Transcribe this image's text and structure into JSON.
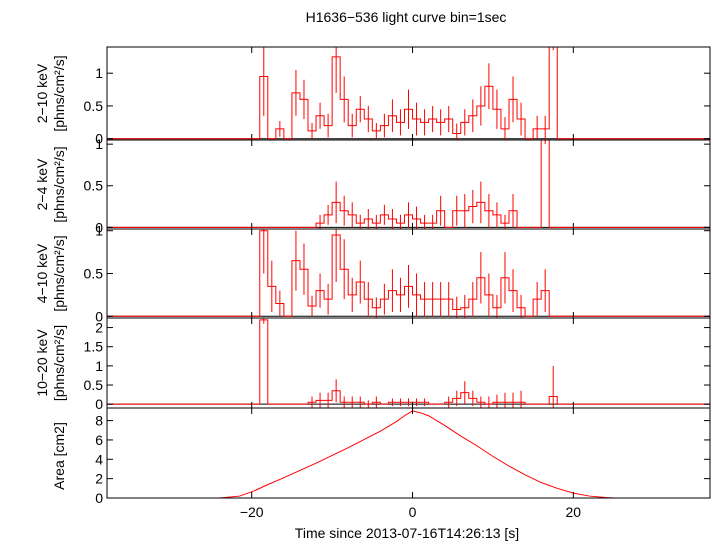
{
  "chart_data": {
    "type": "line",
    "title": "H1636−536 light curve bin=1sec",
    "xlabel": "Time since 2013-07-16T14:26:13 [s]",
    "xlim": [
      -38,
      37
    ],
    "x_ticks": [
      -20,
      0,
      20
    ],
    "x_tick_labels": [
      "−20",
      "0",
      "20"
    ],
    "colors": {
      "series": "#ff0000",
      "axis": "#000000"
    },
    "panels": [
      {
        "id": "p1",
        "ylabel": [
          "2−10 keV",
          "[phns/cm²/s]"
        ],
        "ylim": [
          -0.02,
          1.4
        ],
        "y_ticks": [
          0,
          0.5,
          1
        ],
        "y_tick_labels": [
          "0",
          "0.5",
          "1"
        ],
        "step_values": [
          {
            "x": -18.5,
            "y": 0.95,
            "err": 0.6
          },
          {
            "x": -17.5,
            "y": 0.0,
            "err": 0.0
          },
          {
            "x": -16.5,
            "y": 0.15,
            "err": 0.12
          },
          {
            "x": -15.5,
            "y": 0.0,
            "err": 0.0
          },
          {
            "x": -14.5,
            "y": 0.7,
            "err": 0.35
          },
          {
            "x": -13.5,
            "y": 0.6,
            "err": 0.3
          },
          {
            "x": -12.5,
            "y": 0.12,
            "err": 0.12
          },
          {
            "x": -11.5,
            "y": 0.35,
            "err": 0.2
          },
          {
            "x": -10.5,
            "y": 0.2,
            "err": 0.18
          },
          {
            "x": -9.5,
            "y": 1.25,
            "err": 0.55
          },
          {
            "x": -8.5,
            "y": 0.6,
            "err": 0.35
          },
          {
            "x": -7.5,
            "y": 0.2,
            "err": 0.18
          },
          {
            "x": -6.5,
            "y": 0.45,
            "err": 0.2
          },
          {
            "x": -5.5,
            "y": 0.3,
            "err": 0.2
          },
          {
            "x": -4.5,
            "y": 0.12,
            "err": 0.12
          },
          {
            "x": -3.5,
            "y": 0.2,
            "err": 0.18
          },
          {
            "x": -2.5,
            "y": 0.35,
            "err": 0.25
          },
          {
            "x": -1.5,
            "y": 0.25,
            "err": 0.2
          },
          {
            "x": -0.5,
            "y": 0.45,
            "err": 0.3
          },
          {
            "x": 0.5,
            "y": 0.3,
            "err": 0.25
          },
          {
            "x": 1.5,
            "y": 0.25,
            "err": 0.2
          },
          {
            "x": 2.5,
            "y": 0.3,
            "err": 0.2
          },
          {
            "x": 3.5,
            "y": 0.25,
            "err": 0.2
          },
          {
            "x": 4.5,
            "y": 0.3,
            "err": 0.2
          },
          {
            "x": 5.5,
            "y": 0.08,
            "err": 0.15
          },
          {
            "x": 6.5,
            "y": 0.25,
            "err": 0.2
          },
          {
            "x": 7.5,
            "y": 0.35,
            "err": 0.25
          },
          {
            "x": 8.5,
            "y": 0.5,
            "err": 0.3
          },
          {
            "x": 9.5,
            "y": 0.8,
            "err": 0.35
          },
          {
            "x": 10.5,
            "y": 0.45,
            "err": 0.3
          },
          {
            "x": 11.5,
            "y": 0.15,
            "err": 0.18
          },
          {
            "x": 12.5,
            "y": 0.6,
            "err": 0.35
          },
          {
            "x": 13.5,
            "y": 0.3,
            "err": 0.25
          },
          {
            "x": 14.5,
            "y": 0.0,
            "err": 0.0
          },
          {
            "x": 15.5,
            "y": 0.15,
            "err": 0.2
          },
          {
            "x": 16.5,
            "y": 0.15,
            "err": 0.2
          },
          {
            "x": 17.5,
            "y": 1.4,
            "err": 0.05
          }
        ]
      },
      {
        "id": "p2",
        "ylabel": [
          "2−4 keV",
          "[phns/cm²/s]"
        ],
        "ylim": [
          -0.02,
          1.05
        ],
        "y_ticks": [
          0,
          0.5,
          1
        ],
        "y_tick_labels": [
          "0",
          "0.5",
          "1"
        ],
        "step_values": [
          {
            "x": -11.5,
            "y": 0.05,
            "err": 0.1
          },
          {
            "x": -10.5,
            "y": 0.15,
            "err": 0.12
          },
          {
            "x": -9.5,
            "y": 0.3,
            "err": 0.25
          },
          {
            "x": -8.5,
            "y": 0.2,
            "err": 0.18
          },
          {
            "x": -7.5,
            "y": 0.15,
            "err": 0.15
          },
          {
            "x": -6.5,
            "y": 0.05,
            "err": 0.1
          },
          {
            "x": -5.5,
            "y": 0.1,
            "err": 0.12
          },
          {
            "x": -4.5,
            "y": 0.05,
            "err": 0.1
          },
          {
            "x": -3.5,
            "y": 0.15,
            "err": 0.12
          },
          {
            "x": -2.5,
            "y": 0.1,
            "err": 0.12
          },
          {
            "x": -1.5,
            "y": 0.05,
            "err": 0.1
          },
          {
            "x": -0.5,
            "y": 0.15,
            "err": 0.15
          },
          {
            "x": 0.5,
            "y": 0.1,
            "err": 0.15
          },
          {
            "x": 1.5,
            "y": 0.05,
            "err": 0.1
          },
          {
            "x": 2.5,
            "y": 0.05,
            "err": 0.1
          },
          {
            "x": 3.5,
            "y": 0.2,
            "err": 0.18
          },
          {
            "x": 4.5,
            "y": 0.0,
            "err": 0.0
          },
          {
            "x": 5.5,
            "y": 0.2,
            "err": 0.18
          },
          {
            "x": 6.5,
            "y": 0.2,
            "err": 0.2
          },
          {
            "x": 7.5,
            "y": 0.25,
            "err": 0.2
          },
          {
            "x": 8.5,
            "y": 0.3,
            "err": 0.25
          },
          {
            "x": 9.5,
            "y": 0.2,
            "err": 0.2
          },
          {
            "x": 10.5,
            "y": 0.15,
            "err": 0.15
          },
          {
            "x": 11.5,
            "y": 0.05,
            "err": 0.1
          },
          {
            "x": 12.5,
            "y": 0.2,
            "err": 0.2
          },
          {
            "x": 13.5,
            "y": 0.0,
            "err": 0.0
          },
          {
            "x": 14.5,
            "y": 0.0,
            "err": 0.0
          },
          {
            "x": 15.5,
            "y": 0.0,
            "err": 0.0
          },
          {
            "x": 16.5,
            "y": 1.05,
            "err": 0.05
          },
          {
            "x": 17.5,
            "y": 0.0,
            "err": 0.0
          }
        ]
      },
      {
        "id": "p3",
        "ylabel": [
          "4−10 keV",
          "[phns/cm²/s]"
        ],
        "ylim": [
          -0.02,
          1.02
        ],
        "y_ticks": [
          0,
          0.5,
          1
        ],
        "y_tick_labels": [
          "0",
          "0.5",
          "1"
        ],
        "step_values": [
          {
            "x": -18.5,
            "y": 1.0,
            "err": 0.5
          },
          {
            "x": -17.5,
            "y": 0.35,
            "err": 0.3
          },
          {
            "x": -16.5,
            "y": 0.15,
            "err": 0.15
          },
          {
            "x": -15.5,
            "y": 0.0,
            "err": 0.0
          },
          {
            "x": -14.5,
            "y": 0.65,
            "err": 0.35
          },
          {
            "x": -13.5,
            "y": 0.55,
            "err": 0.3
          },
          {
            "x": -12.5,
            "y": 0.12,
            "err": 0.12
          },
          {
            "x": -11.5,
            "y": 0.3,
            "err": 0.2
          },
          {
            "x": -10.5,
            "y": 0.2,
            "err": 0.18
          },
          {
            "x": -9.5,
            "y": 0.95,
            "err": 0.55
          },
          {
            "x": -8.5,
            "y": 0.55,
            "err": 0.35
          },
          {
            "x": -7.5,
            "y": 0.25,
            "err": 0.2
          },
          {
            "x": -6.5,
            "y": 0.4,
            "err": 0.25
          },
          {
            "x": -5.5,
            "y": 0.2,
            "err": 0.2
          },
          {
            "x": -4.5,
            "y": 0.1,
            "err": 0.12
          },
          {
            "x": -3.5,
            "y": 0.2,
            "err": 0.18
          },
          {
            "x": -2.5,
            "y": 0.3,
            "err": 0.25
          },
          {
            "x": -1.5,
            "y": 0.25,
            "err": 0.2
          },
          {
            "x": -0.5,
            "y": 0.35,
            "err": 0.25
          },
          {
            "x": 0.5,
            "y": 0.25,
            "err": 0.25
          },
          {
            "x": 1.5,
            "y": 0.2,
            "err": 0.2
          },
          {
            "x": 2.5,
            "y": 0.2,
            "err": 0.2
          },
          {
            "x": 3.5,
            "y": 0.2,
            "err": 0.2
          },
          {
            "x": 4.5,
            "y": 0.2,
            "err": 0.2
          },
          {
            "x": 5.5,
            "y": 0.08,
            "err": 0.15
          },
          {
            "x": 6.5,
            "y": 0.1,
            "err": 0.15
          },
          {
            "x": 7.5,
            "y": 0.2,
            "err": 0.2
          },
          {
            "x": 8.5,
            "y": 0.45,
            "err": 0.3
          },
          {
            "x": 9.5,
            "y": 0.25,
            "err": 0.25
          },
          {
            "x": 10.5,
            "y": 0.1,
            "err": 0.15
          },
          {
            "x": 11.5,
            "y": 0.45,
            "err": 0.3
          },
          {
            "x": 12.5,
            "y": 0.3,
            "err": 0.25
          },
          {
            "x": 13.5,
            "y": 0.1,
            "err": 0.15
          },
          {
            "x": 14.5,
            "y": 0.0,
            "err": 0.0
          },
          {
            "x": 15.5,
            "y": 0.2,
            "err": 0.2
          },
          {
            "x": 16.5,
            "y": 0.3,
            "err": 0.25
          },
          {
            "x": 17.5,
            "y": 0.0,
            "err": 0.0
          }
        ]
      },
      {
        "id": "p4",
        "ylabel": [
          "10−20 keV",
          "[phns/cm²/s]"
        ],
        "ylim": [
          -0.1,
          2.25
        ],
        "y_ticks": [
          0,
          0.5,
          1,
          1.5,
          2
        ],
        "y_tick_labels": [
          "0",
          "0.5",
          "1",
          "1.5",
          "2"
        ],
        "step_values": [
          {
            "x": -18.5,
            "y": 2.2,
            "err": 0.1
          },
          {
            "x": -17.5,
            "y": 0.0,
            "err": 0.0
          },
          {
            "x": -12.5,
            "y": 0.05,
            "err": 0.15
          },
          {
            "x": -11.5,
            "y": 0.1,
            "err": 0.2
          },
          {
            "x": -10.5,
            "y": 0.1,
            "err": 0.2
          },
          {
            "x": -9.5,
            "y": 0.35,
            "err": 0.3
          },
          {
            "x": -8.5,
            "y": 0.05,
            "err": 0.15
          },
          {
            "x": -7.5,
            "y": 0.05,
            "err": 0.15
          },
          {
            "x": -6.5,
            "y": 0.05,
            "err": 0.15
          },
          {
            "x": -5.5,
            "y": 0.0,
            "err": 0.1
          },
          {
            "x": -4.5,
            "y": 0.05,
            "err": 0.15
          },
          {
            "x": -3.5,
            "y": 0.0,
            "err": 0.0
          },
          {
            "x": -2.5,
            "y": 0.05,
            "err": 0.1
          },
          {
            "x": -1.5,
            "y": 0.05,
            "err": 0.1
          },
          {
            "x": -0.5,
            "y": 0.05,
            "err": 0.1
          },
          {
            "x": 0.5,
            "y": 0.05,
            "err": 0.1
          },
          {
            "x": 1.5,
            "y": 0.05,
            "err": 0.1
          },
          {
            "x": 4.5,
            "y": 0.05,
            "err": 0.15
          },
          {
            "x": 5.5,
            "y": 0.15,
            "err": 0.2
          },
          {
            "x": 6.5,
            "y": 0.3,
            "err": 0.3
          },
          {
            "x": 7.5,
            "y": 0.15,
            "err": 0.2
          },
          {
            "x": 8.5,
            "y": 0.05,
            "err": 0.15
          },
          {
            "x": 9.5,
            "y": 0.0,
            "err": 0.2
          },
          {
            "x": 10.5,
            "y": 0.05,
            "err": 0.2
          },
          {
            "x": 11.5,
            "y": 0.05,
            "err": 0.25
          },
          {
            "x": 12.5,
            "y": 0.05,
            "err": 0.25
          },
          {
            "x": 13.5,
            "y": 0.05,
            "err": 0.3
          },
          {
            "x": 17.5,
            "y": 0.2,
            "err": 0.8
          }
        ]
      },
      {
        "id": "p5",
        "ylabel": [
          "Area [cm2]"
        ],
        "ylim": [
          0,
          9.3
        ],
        "y_ticks": [
          0,
          2,
          4,
          6,
          8
        ],
        "y_tick_labels": [
          "0",
          "2",
          "4",
          "6",
          "8"
        ],
        "curve": [
          {
            "x": -38,
            "y": 0
          },
          {
            "x": -24,
            "y": 0
          },
          {
            "x": -21.5,
            "y": 0.2
          },
          {
            "x": -20.5,
            "y": 0.5
          },
          {
            "x": -19.5,
            "y": 0.8
          },
          {
            "x": -18.5,
            "y": 1.2
          },
          {
            "x": -16,
            "y": 2.1
          },
          {
            "x": -12,
            "y": 3.6
          },
          {
            "x": -8,
            "y": 5.2
          },
          {
            "x": -4,
            "y": 6.9
          },
          {
            "x": -2,
            "y": 7.9
          },
          {
            "x": -1,
            "y": 8.5
          },
          {
            "x": 0,
            "y": 9.0
          },
          {
            "x": 1,
            "y": 8.8
          },
          {
            "x": 2,
            "y": 8.5
          },
          {
            "x": 4,
            "y": 7.5
          },
          {
            "x": 6,
            "y": 6.4
          },
          {
            "x": 8,
            "y": 5.4
          },
          {
            "x": 10,
            "y": 4.3
          },
          {
            "x": 12,
            "y": 3.3
          },
          {
            "x": 14,
            "y": 2.4
          },
          {
            "x": 16,
            "y": 1.6
          },
          {
            "x": 18,
            "y": 1.0
          },
          {
            "x": 20,
            "y": 0.5
          },
          {
            "x": 22,
            "y": 0.2
          },
          {
            "x": 24,
            "y": 0.05
          },
          {
            "x": 25,
            "y": 0
          },
          {
            "x": 37,
            "y": 0
          }
        ]
      }
    ]
  }
}
